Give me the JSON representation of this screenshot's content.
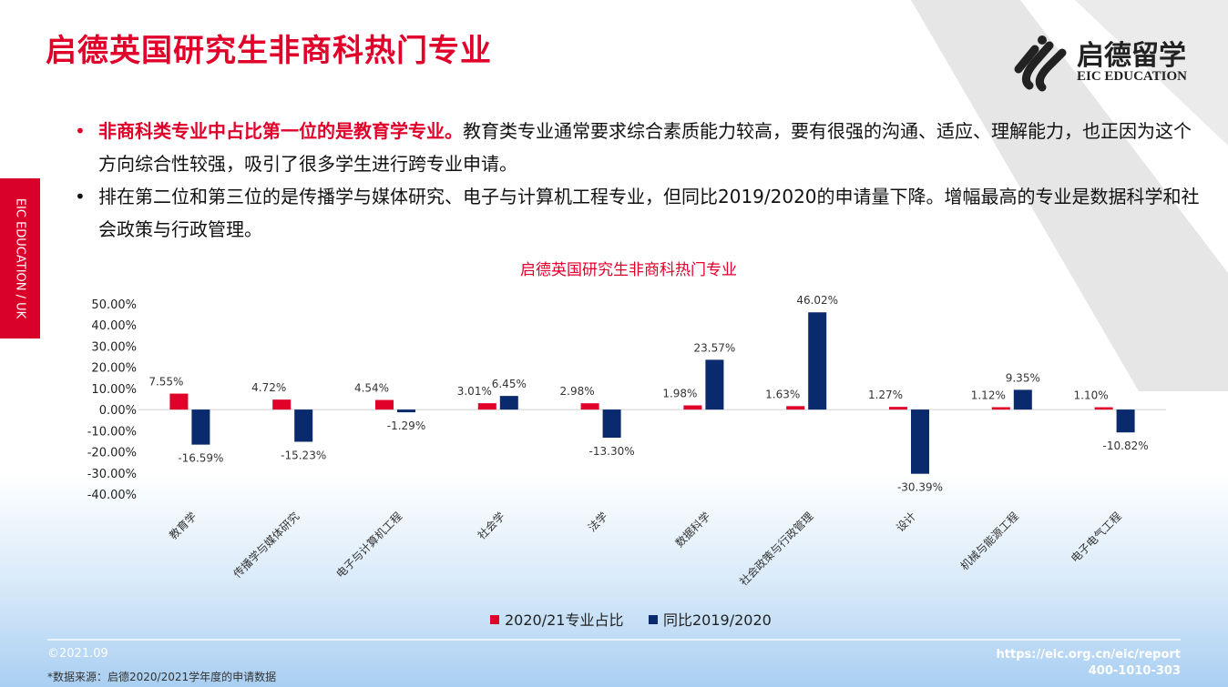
{
  "header": {
    "title": "启德英国研究生非商科热门专业"
  },
  "logo": {
    "cn": "启德留学",
    "en": "EIC EDUCATION"
  },
  "side_tab": "EIC EDUCATION / UK",
  "bullets": [
    {
      "highlight": "非商科类专业中占比第一位的是教育学专业。",
      "text": "教育类专业通常要求综合素质能力较高，要有很强的沟通、适应、理解能力，也正因为这个方向综合性较强，吸引了很多学生进行跨专业申请。"
    },
    {
      "highlight": "",
      "text": "排在第二位和第三位的是传播学与媒体研究、电子与计算机工程专业，但同比2019/2020的申请量下降。增幅最高的专业是数据科学和社会政策与行政管理。"
    }
  ],
  "chart_data": {
    "type": "bar",
    "title": "启德英国研究生非商科热门专业",
    "categories": [
      "教育学",
      "传播学与媒体研究",
      "电子与计算机工程",
      "社会学",
      "法学",
      "数据科学",
      "社会政策与行政管理",
      "设计",
      "机械与能源工程",
      "电子电气工程"
    ],
    "series": [
      {
        "name": "2020/21专业占比",
        "color": "#e0002a",
        "values": [
          7.55,
          4.72,
          4.54,
          3.01,
          2.98,
          1.98,
          1.63,
          1.27,
          1.12,
          1.1
        ],
        "labels": [
          "7.55%",
          "4.72%",
          "4.54%",
          "3.01%",
          "2.98%",
          "1.98%",
          "1.63%",
          "1.27%",
          "1.12%",
          "1.10%"
        ]
      },
      {
        "name": "同比2019/2020",
        "color": "#0a2a6e",
        "values": [
          -16.59,
          -15.23,
          -1.29,
          6.45,
          -13.3,
          23.57,
          46.02,
          -30.39,
          9.35,
          -10.82
        ],
        "labels": [
          "-16.59%",
          "-15.23%",
          "-1.29%",
          "6.45%",
          "-13.30%",
          "23.57%",
          "46.02%",
          "-30.39%",
          "9.35%",
          "-10.82%"
        ]
      }
    ],
    "ylim": [
      -40,
      50
    ],
    "yticks": [
      "50.00%",
      "40.00%",
      "30.00%",
      "20.00%",
      "10.00%",
      "0.00%",
      "-10.00%",
      "-20.00%",
      "-30.00%",
      "-40.00%"
    ],
    "grid": false,
    "legend": "bottom"
  },
  "footer": {
    "date": "©2021.09",
    "source": "*数据来源：启德2020/2021学年度的申请数据",
    "url": "https://eic.org.cn/eic/report",
    "phone": "400-1010-303"
  }
}
